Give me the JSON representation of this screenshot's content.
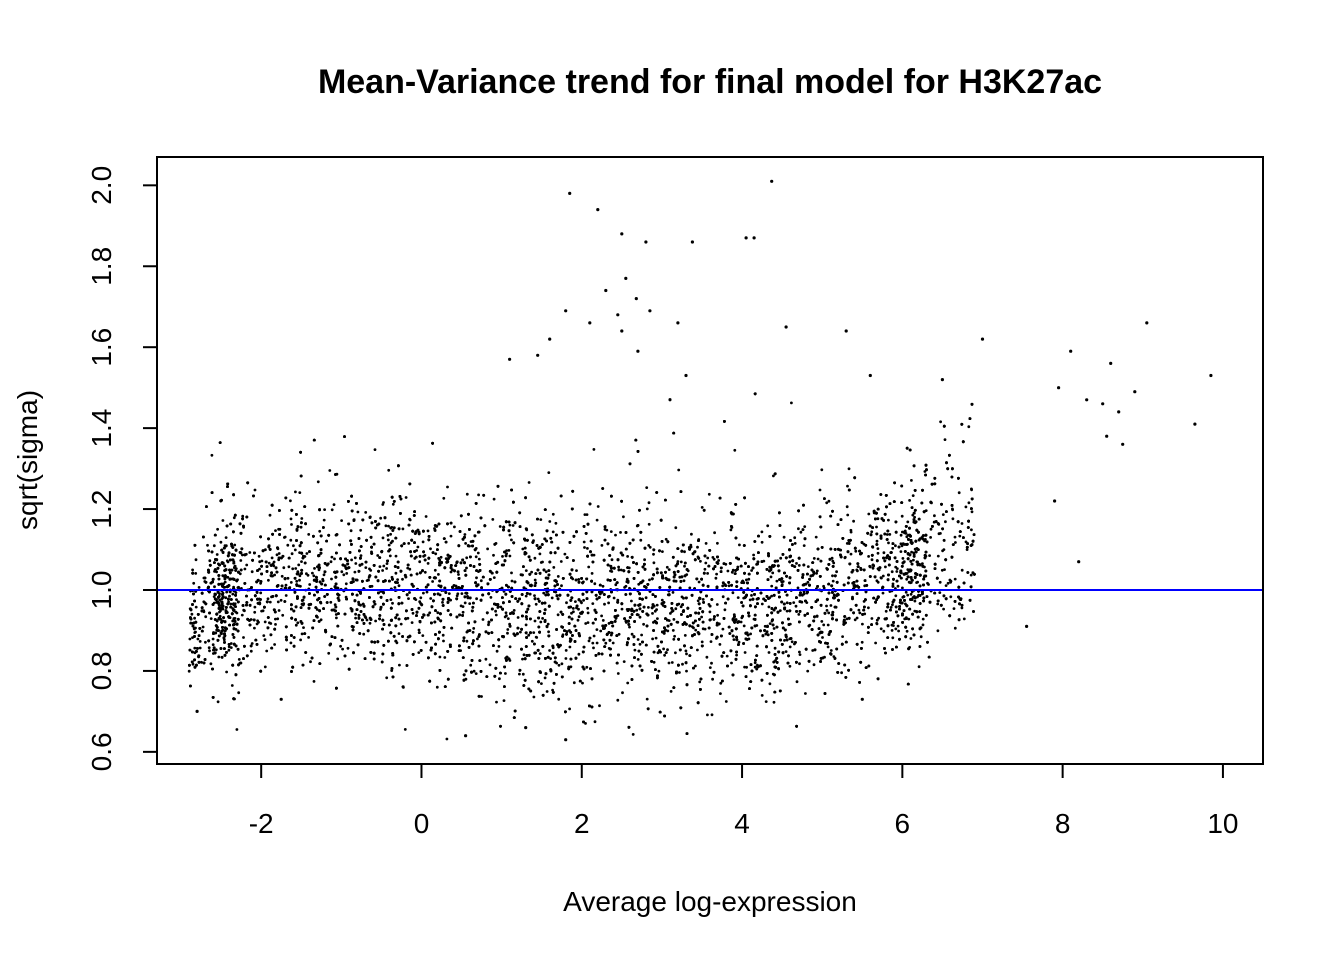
{
  "chart_data": {
    "type": "scatter",
    "title": "Mean-Variance trend for final model for H3K27ac",
    "xlabel": "Average log-expression",
    "ylabel": "sqrt(sigma)",
    "xlim": [
      -3.3,
      10.5
    ],
    "ylim": [
      0.57,
      2.07
    ],
    "xticks": [
      -2,
      0,
      2,
      4,
      6,
      8,
      10
    ],
    "yticks": [
      0.6,
      0.8,
      1.0,
      1.2,
      1.4,
      1.6,
      1.8,
      2.0
    ],
    "xtick_labels": [
      "-2",
      "0",
      "2",
      "4",
      "6",
      "8",
      "10"
    ],
    "ytick_labels": [
      "0.6",
      "0.8",
      "1.0",
      "1.2",
      "1.4",
      "1.6",
      "1.8",
      "2.0"
    ],
    "grid": false,
    "legend": "none",
    "trend_line": {
      "orientation": "horizontal",
      "y": 1.0,
      "color": "#0000ff"
    },
    "point_color": "#000000",
    "density_cloud": {
      "x_range": [
        -2.9,
        6.9
      ],
      "center_y": [
        [
          -2.9,
          0.9
        ],
        [
          -2.5,
          0.98
        ],
        [
          -2.0,
          1.0
        ],
        [
          -1.0,
          1.02
        ],
        [
          0.0,
          1.0
        ],
        [
          1.0,
          0.96
        ],
        [
          2.0,
          0.96
        ],
        [
          3.0,
          0.97
        ],
        [
          4.0,
          0.96
        ],
        [
          5.0,
          0.97
        ],
        [
          6.0,
          1.03
        ],
        [
          6.9,
          1.15
        ]
      ],
      "spread_y": [
        [
          -2.9,
          0.06
        ],
        [
          -2.5,
          0.1
        ],
        [
          -2.0,
          0.1
        ],
        [
          -1.0,
          0.1
        ],
        [
          0.0,
          0.11
        ],
        [
          1.0,
          0.12
        ],
        [
          2.0,
          0.12
        ],
        [
          3.0,
          0.11
        ],
        [
          4.0,
          0.1
        ],
        [
          5.0,
          0.1
        ],
        [
          6.0,
          0.11
        ],
        [
          6.9,
          0.12
        ]
      ]
    },
    "outliers": [
      {
        "x": 4.37,
        "y": 2.01
      },
      {
        "x": 1.85,
        "y": 1.98
      },
      {
        "x": 2.2,
        "y": 1.94
      },
      {
        "x": 2.5,
        "y": 1.88
      },
      {
        "x": 2.8,
        "y": 1.86
      },
      {
        "x": 3.38,
        "y": 1.86
      },
      {
        "x": 4.05,
        "y": 1.87
      },
      {
        "x": 4.15,
        "y": 1.87
      },
      {
        "x": 2.55,
        "y": 1.77
      },
      {
        "x": 2.68,
        "y": 1.72
      },
      {
        "x": 2.85,
        "y": 1.69
      },
      {
        "x": 2.3,
        "y": 1.74
      },
      {
        "x": 1.8,
        "y": 1.69
      },
      {
        "x": 2.45,
        "y": 1.68
      },
      {
        "x": 2.1,
        "y": 1.66
      },
      {
        "x": 2.5,
        "y": 1.64
      },
      {
        "x": 3.2,
        "y": 1.66
      },
      {
        "x": 4.55,
        "y": 1.65
      },
      {
        "x": 5.3,
        "y": 1.64
      },
      {
        "x": 7.0,
        "y": 1.62
      },
      {
        "x": 9.05,
        "y": 1.66
      },
      {
        "x": 8.1,
        "y": 1.59
      },
      {
        "x": 8.6,
        "y": 1.56
      },
      {
        "x": 9.85,
        "y": 1.53
      },
      {
        "x": 8.9,
        "y": 1.49
      },
      {
        "x": 9.65,
        "y": 1.41
      },
      {
        "x": 1.6,
        "y": 1.62
      },
      {
        "x": 1.45,
        "y": 1.58
      },
      {
        "x": 1.1,
        "y": 1.57
      },
      {
        "x": 2.7,
        "y": 1.59
      },
      {
        "x": 3.3,
        "y": 1.53
      },
      {
        "x": 5.6,
        "y": 1.53
      },
      {
        "x": 6.5,
        "y": 1.52
      },
      {
        "x": 8.3,
        "y": 1.47
      },
      {
        "x": 8.5,
        "y": 1.46
      },
      {
        "x": 8.7,
        "y": 1.44
      },
      {
        "x": 7.55,
        "y": 0.91
      },
      {
        "x": 8.2,
        "y": 1.07
      },
      {
        "x": 8.55,
        "y": 1.38
      },
      {
        "x": 8.75,
        "y": 1.36
      },
      {
        "x": 7.9,
        "y": 1.22
      },
      {
        "x": 7.95,
        "y": 1.5
      },
      {
        "x": 0.55,
        "y": 0.64
      },
      {
        "x": 1.8,
        "y": 0.63
      },
      {
        "x": -2.8,
        "y": 0.7
      },
      {
        "x": -1.75,
        "y": 0.73
      },
      {
        "x": 1.3,
        "y": 0.66
      },
      {
        "x": 5.5,
        "y": 0.73
      }
    ]
  }
}
